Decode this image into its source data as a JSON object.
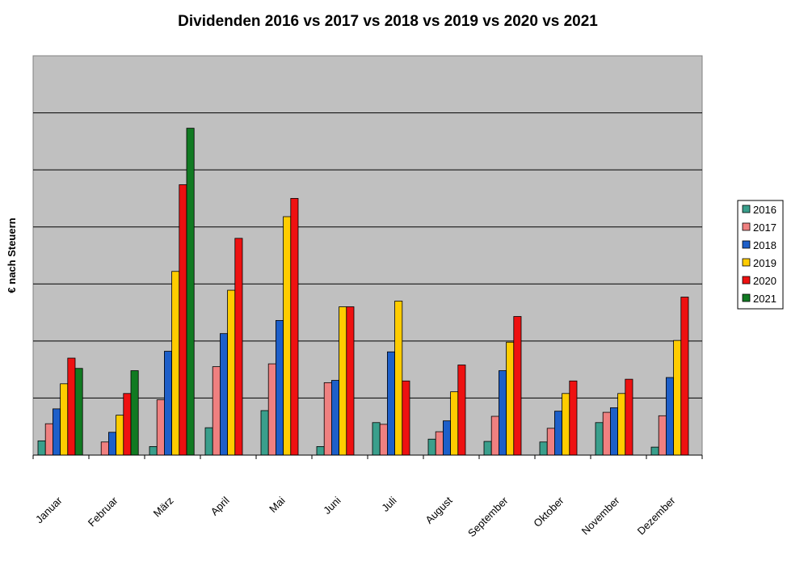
{
  "chart_data": {
    "type": "bar",
    "title": "Dividenden 2016 vs 2017 vs 2018 vs 2019 vs 2020 vs 2021",
    "xlabel": "",
    "ylabel": "€ nach Steuern",
    "ylim": [
      0,
      7
    ],
    "grid": true,
    "legend_position": "right",
    "categories": [
      "Januar",
      "Februar",
      "März",
      "April",
      "Mai",
      "Juni",
      "Juli",
      "August",
      "September",
      "Oktober",
      "November",
      "Dezember"
    ],
    "series": [
      {
        "name": "2016",
        "color": "#3a9f8c",
        "values": [
          0.25,
          0,
          0.15,
          0.48,
          0.78,
          0.15,
          0.57,
          0.28,
          0.24,
          0.23,
          0.57,
          0.14
        ]
      },
      {
        "name": "2017",
        "color": "#ef8080",
        "values": [
          0.55,
          0.23,
          0.97,
          1.55,
          1.6,
          1.27,
          0.54,
          0.41,
          0.68,
          0.47,
          0.75,
          0.69
        ]
      },
      {
        "name": "2018",
        "color": "#1d5fc9",
        "values": [
          0.81,
          0.4,
          1.82,
          2.13,
          2.36,
          1.31,
          1.81,
          0.6,
          1.48,
          0.77,
          0.83,
          1.36
        ]
      },
      {
        "name": "2019",
        "color": "#ffcc00",
        "values": [
          1.25,
          0.7,
          3.22,
          2.89,
          4.18,
          2.6,
          2.7,
          1.11,
          1.98,
          1.08,
          1.08,
          2.01
        ]
      },
      {
        "name": "2020",
        "color": "#ee1111",
        "values": [
          1.7,
          1.08,
          4.74,
          3.8,
          4.5,
          2.6,
          1.3,
          1.58,
          2.43,
          1.3,
          1.33,
          2.77
        ]
      },
      {
        "name": "2021",
        "color": "#117a22",
        "values": [
          1.52,
          1.48,
          5.73,
          0,
          0,
          0,
          0,
          0,
          0,
          0,
          0,
          0
        ]
      }
    ]
  }
}
